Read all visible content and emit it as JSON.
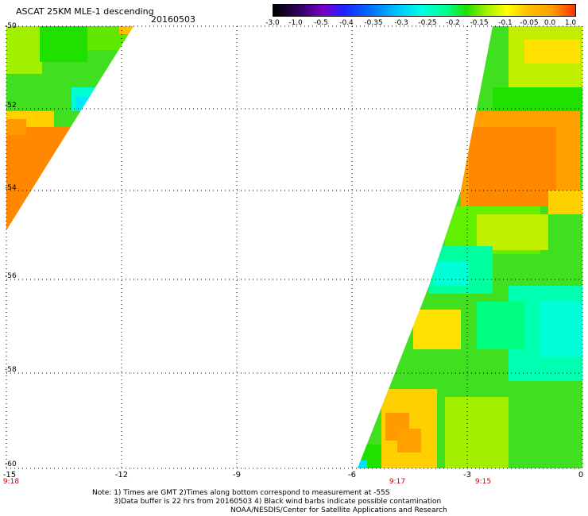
{
  "header": {
    "title": "ASCAT 25KM MLE-1 descending",
    "date": "20160503"
  },
  "colorbar": {
    "labels": [
      "-3.0",
      "-1.0",
      "-0.5",
      "-0.4",
      "-0.35",
      "-0.3",
      "-0.25",
      "-0.2",
      "-0.15",
      "-0.1",
      "-0.05",
      "0.0",
      "1.0"
    ],
    "colors": [
      "#000000",
      "#3a0070",
      "#7a00c8",
      "#2020ff",
      "#0070ff",
      "#00c8ff",
      "#00ffe0",
      "#00ff90",
      "#20e000",
      "#a0f000",
      "#ffff00",
      "#ffa000",
      "#ff3000"
    ]
  },
  "axes": {
    "lat_labels": [
      "-50",
      "-52",
      "-54",
      "-56",
      "-58",
      "-60"
    ],
    "lon_labels": [
      "-15",
      "-12",
      "-9",
      "-6",
      "-3",
      "0"
    ],
    "time_labels": [
      "9:18",
      "9:17",
      "9:15"
    ]
  },
  "notes": {
    "line1": "Note: 1) Times are GMT 2)Times along bottom correspond to measurement at -55S",
    "line2": "3)Data buffer is 22 hrs from 20160503 4) Black wind barbs indicate possible contamination",
    "line3": "NOAA/NESDIS/Center for Satellite Applications and Research"
  }
}
